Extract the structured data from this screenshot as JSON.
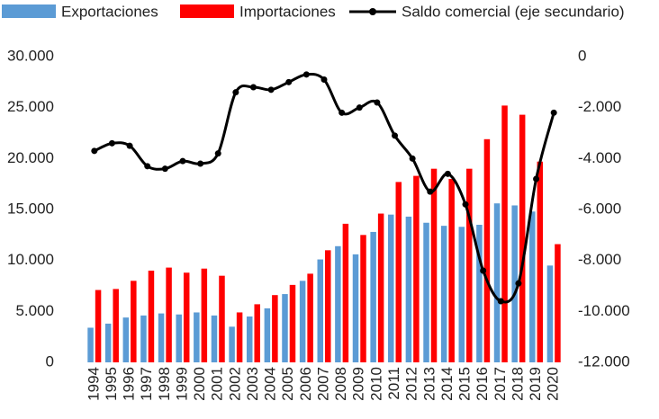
{
  "chart_data": {
    "type": "bar_line",
    "categories": [
      "1994",
      "1995",
      "1996",
      "1997",
      "1998",
      "1999",
      "2000",
      "2001",
      "2002",
      "2003",
      "2004",
      "2005",
      "2006",
      "2007",
      "2008",
      "2009",
      "2010",
      "2011",
      "2012",
      "2013",
      "2014",
      "2015",
      "2016",
      "2017",
      "2018",
      "2019",
      "2020"
    ],
    "series": [
      {
        "name": "Exportaciones",
        "color": "#5b9bd5",
        "type": "bar",
        "values": [
          3400,
          3800,
          4400,
          4600,
          4800,
          4700,
          4900,
          4600,
          3500,
          4500,
          5300,
          6700,
          8000,
          10100,
          11400,
          10600,
          12800,
          14500,
          14300,
          13700,
          13400,
          13300,
          13500,
          15600,
          15400,
          14800,
          9500
        ]
      },
      {
        "name": "Importaciones",
        "color": "#ff0000",
        "type": "bar",
        "values": [
          7100,
          7200,
          8000,
          9000,
          9300,
          8800,
          9200,
          8500,
          4900,
          5700,
          6600,
          7600,
          8700,
          11000,
          13600,
          12500,
          14600,
          17700,
          18300,
          19000,
          18000,
          19000,
          21900,
          25200,
          24300,
          19700,
          11600
        ]
      },
      {
        "name": "Saldo comercial (eje secundario)",
        "color": "#000000",
        "type": "line",
        "axis": "y2",
        "values": [
          -3700,
          -3400,
          -3500,
          -4300,
          -4400,
          -4100,
          -4200,
          -3800,
          -1400,
          -1200,
          -1300,
          -1000,
          -700,
          -900,
          -2200,
          -2000,
          -1800,
          -3100,
          -4000,
          -5300,
          -4600,
          -5800,
          -8400,
          -9600,
          -8900,
          -4800,
          -2200
        ]
      }
    ],
    "ylim": [
      0,
      30000
    ],
    "yticks": [
      0,
      {
        "value": 5000,
        "label": "5.000"
      },
      {
        "value": 10000,
        "label": "10.000"
      },
      {
        "value": 15000,
        "label": "15.000"
      },
      {
        "value": 20000,
        "label": "20.000"
      },
      {
        "value": 25000,
        "label": "25.000"
      },
      {
        "value": 30000,
        "label": "30.000"
      }
    ],
    "y2lim": [
      -12000,
      0
    ],
    "y2ticks": [
      {
        "value": -12000,
        "label": "-12.000"
      },
      {
        "value": -10000,
        "label": "-10.000"
      },
      {
        "value": -8000,
        "label": "-8.000"
      },
      {
        "value": -6000,
        "label": "-6.000"
      },
      {
        "value": -4000,
        "label": "-4.000"
      },
      {
        "value": -2000,
        "label": "-2.000"
      },
      0
    ],
    "legend": "top"
  }
}
